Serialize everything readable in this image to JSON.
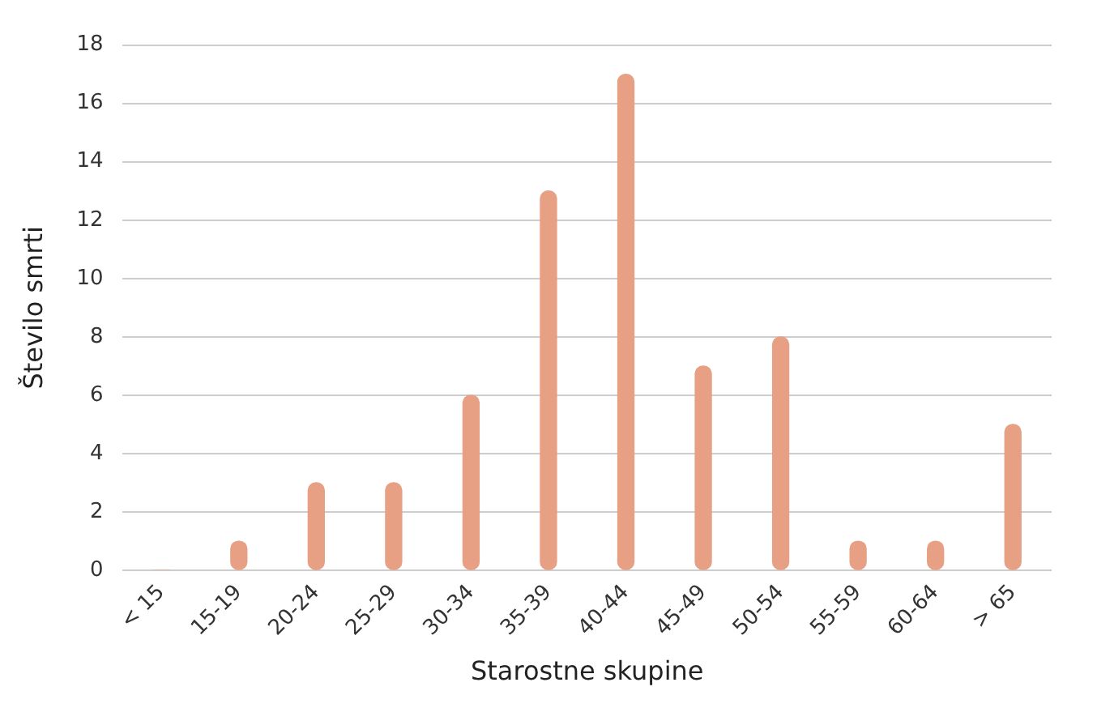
{
  "chart_data": {
    "type": "bar",
    "xlabel": "Starostne skupine",
    "ylabel": "Število smrti",
    "categories": [
      "< 15",
      "15-19",
      "20-24",
      "25-29",
      "30-34",
      "35-39",
      "40-44",
      "45-49",
      "50-54",
      "55-59",
      "60-64",
      "> 65"
    ],
    "values": [
      0,
      1,
      3,
      3,
      6,
      13,
      17,
      7,
      8,
      1,
      1,
      5
    ],
    "color": "#e8a085",
    "ylim": [
      0,
      18
    ],
    "yticks": [
      0,
      2,
      4,
      6,
      8,
      10,
      12,
      14,
      16,
      18
    ],
    "grid": "y",
    "legend": false
  }
}
